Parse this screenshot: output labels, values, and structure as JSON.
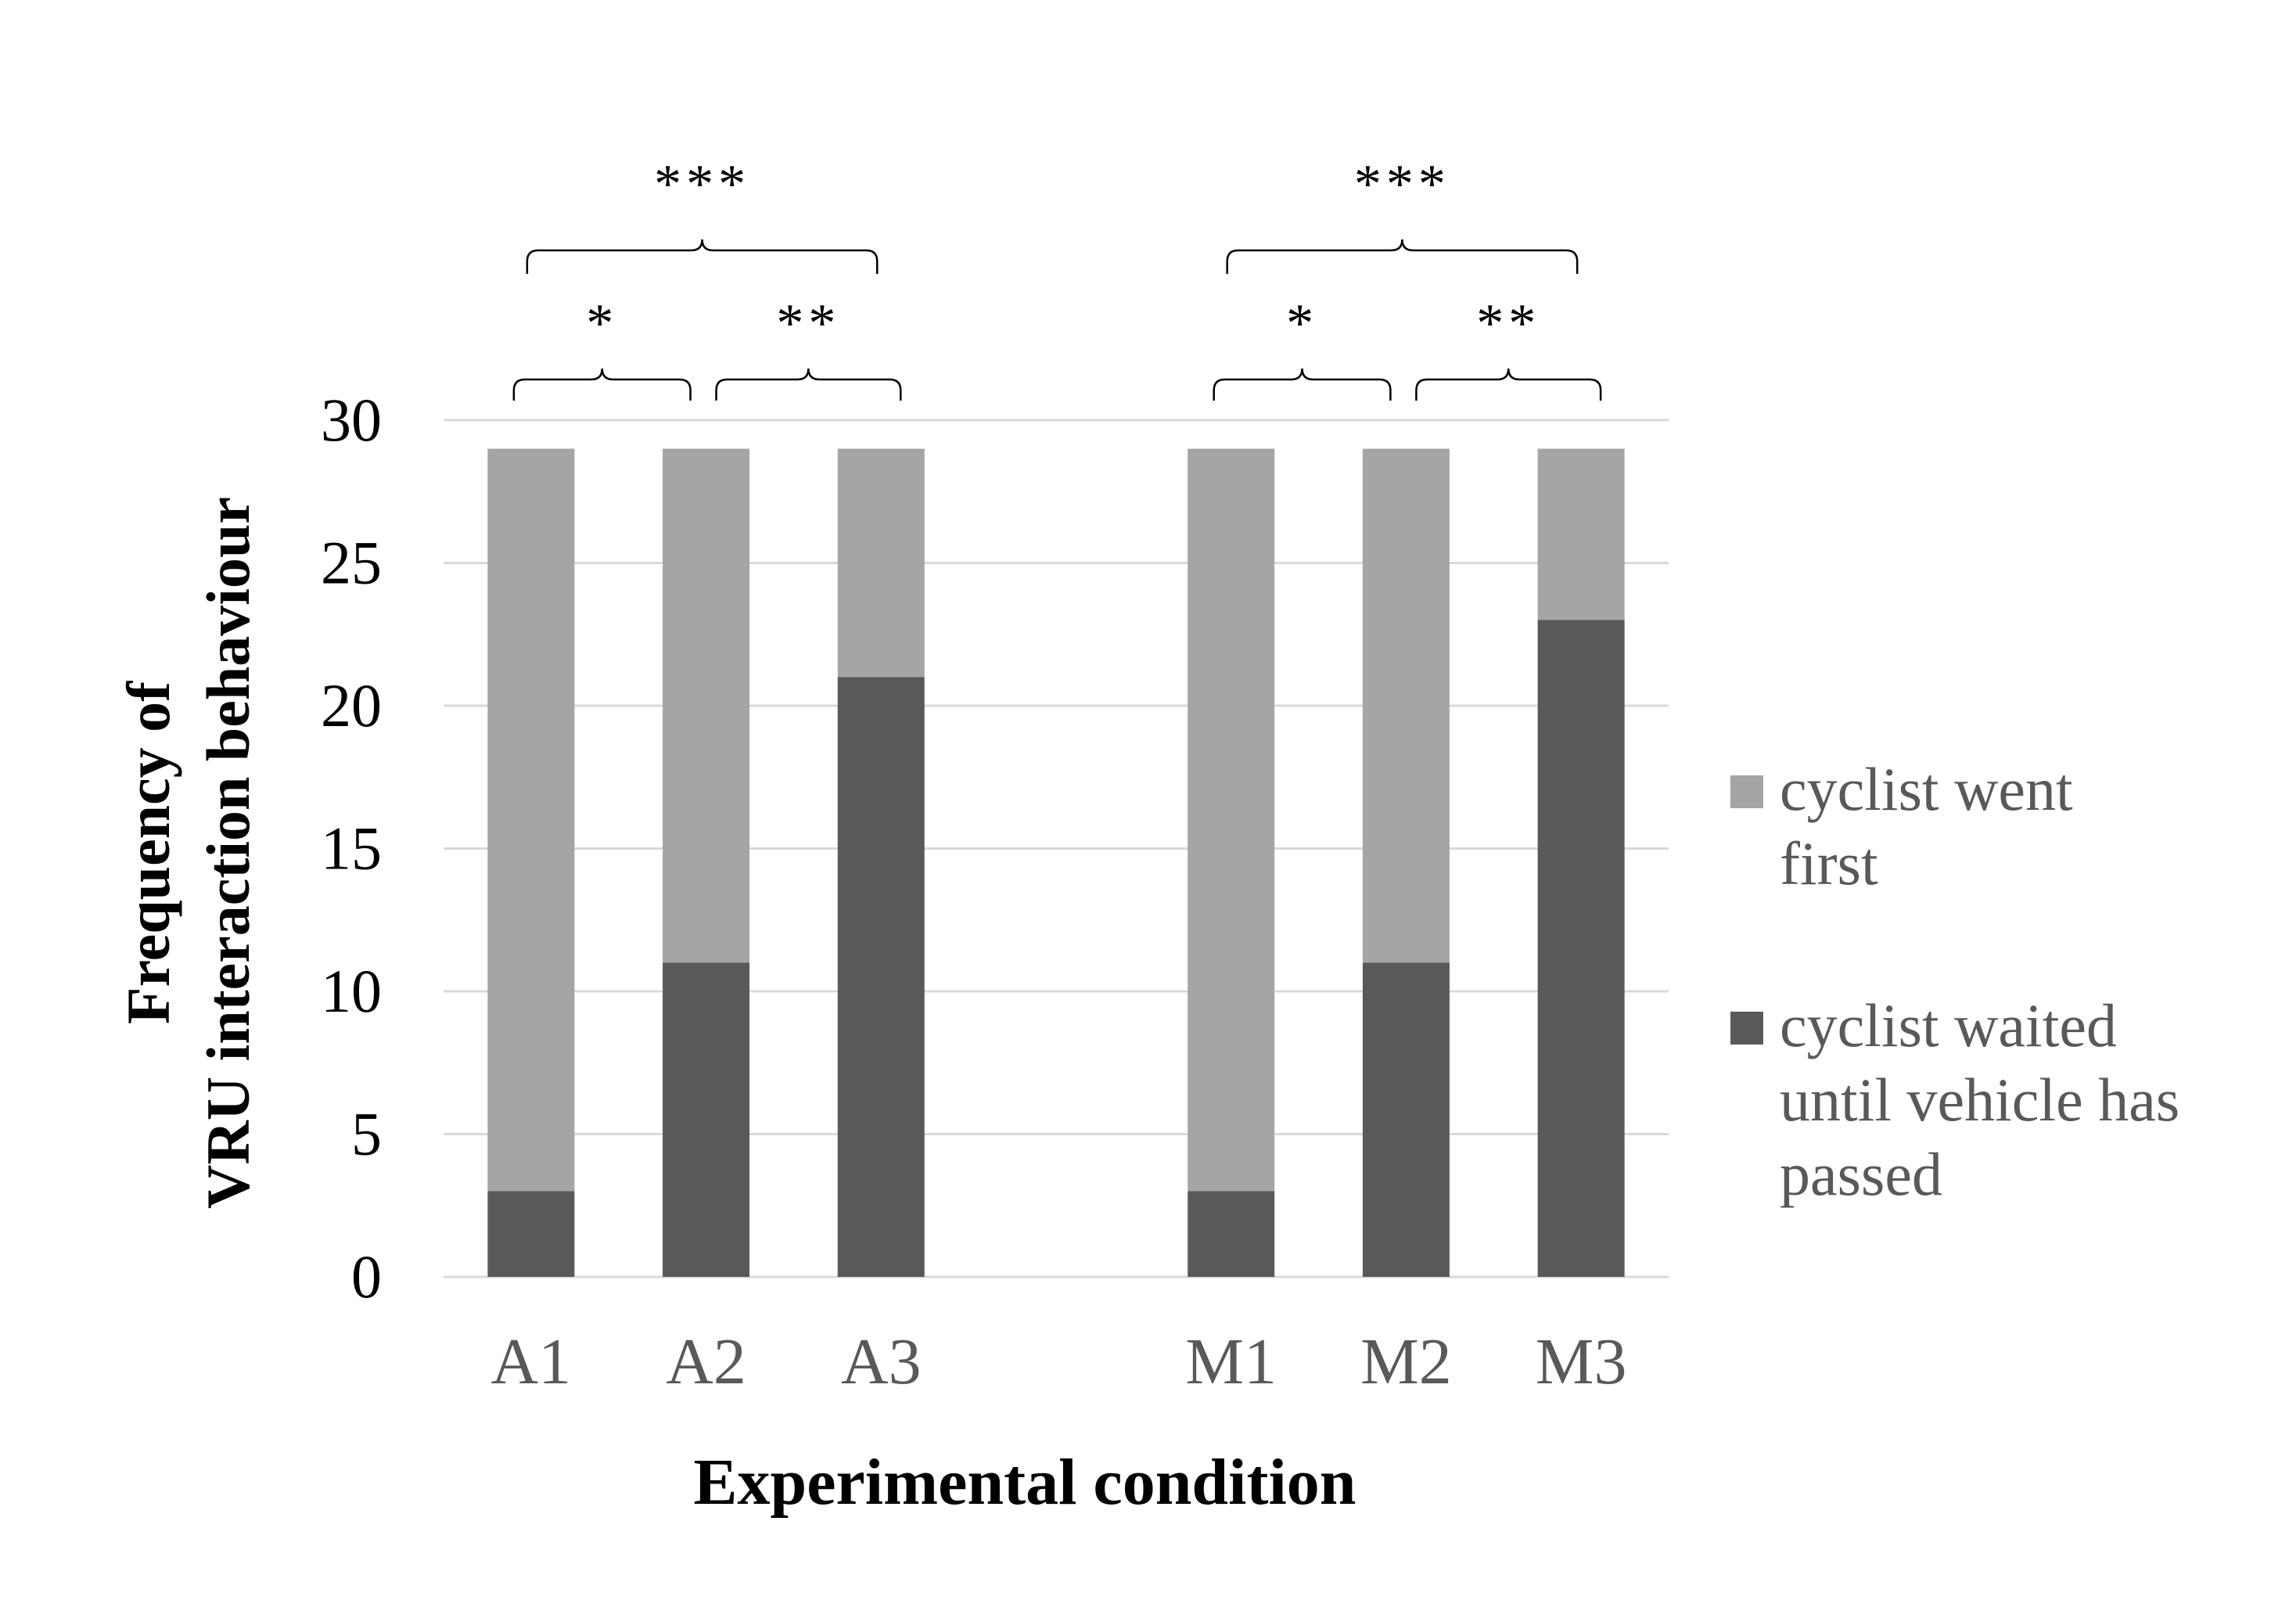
{
  "chart_data": {
    "type": "bar",
    "stacked": true,
    "categories": [
      "A1",
      "A2",
      "A3",
      "M1",
      "M2",
      "M3"
    ],
    "category_groups": [
      [
        "A1",
        "A2",
        "A3"
      ],
      [
        "M1",
        "M2",
        "M3"
      ]
    ],
    "series": [
      {
        "name": "cyclist waited until vehicle has passed",
        "legend_lines": [
          "cyclist waited",
          "until vehicle has",
          "passed"
        ],
        "color": "#595959",
        "values": [
          3,
          11,
          21,
          3,
          11,
          23
        ]
      },
      {
        "name": "cyclist went first",
        "legend_lines": [
          "cyclist went",
          "first"
        ],
        "color": "#a5a5a5",
        "values": [
          26,
          18,
          8,
          26,
          18,
          6
        ]
      }
    ],
    "xlabel": "Experimental condition",
    "ylabel_lines": [
      "Frequency of",
      "VRU interaction behaviour"
    ],
    "ylim": [
      0,
      30
    ],
    "yticks": [
      0,
      5,
      10,
      15,
      20,
      25,
      30
    ],
    "grid": true,
    "grid_color": "#d9d9d9",
    "legend_position": "right",
    "significance": [
      {
        "from": "A1",
        "to": "A2",
        "label": "*"
      },
      {
        "from": "A2",
        "to": "A3",
        "label": "**"
      },
      {
        "from": "A1",
        "to": "A3",
        "label": "***"
      },
      {
        "from": "M1",
        "to": "M2",
        "label": "*"
      },
      {
        "from": "M2",
        "to": "M3",
        "label": "**"
      },
      {
        "from": "M1",
        "to": "M3",
        "label": "***"
      }
    ]
  }
}
